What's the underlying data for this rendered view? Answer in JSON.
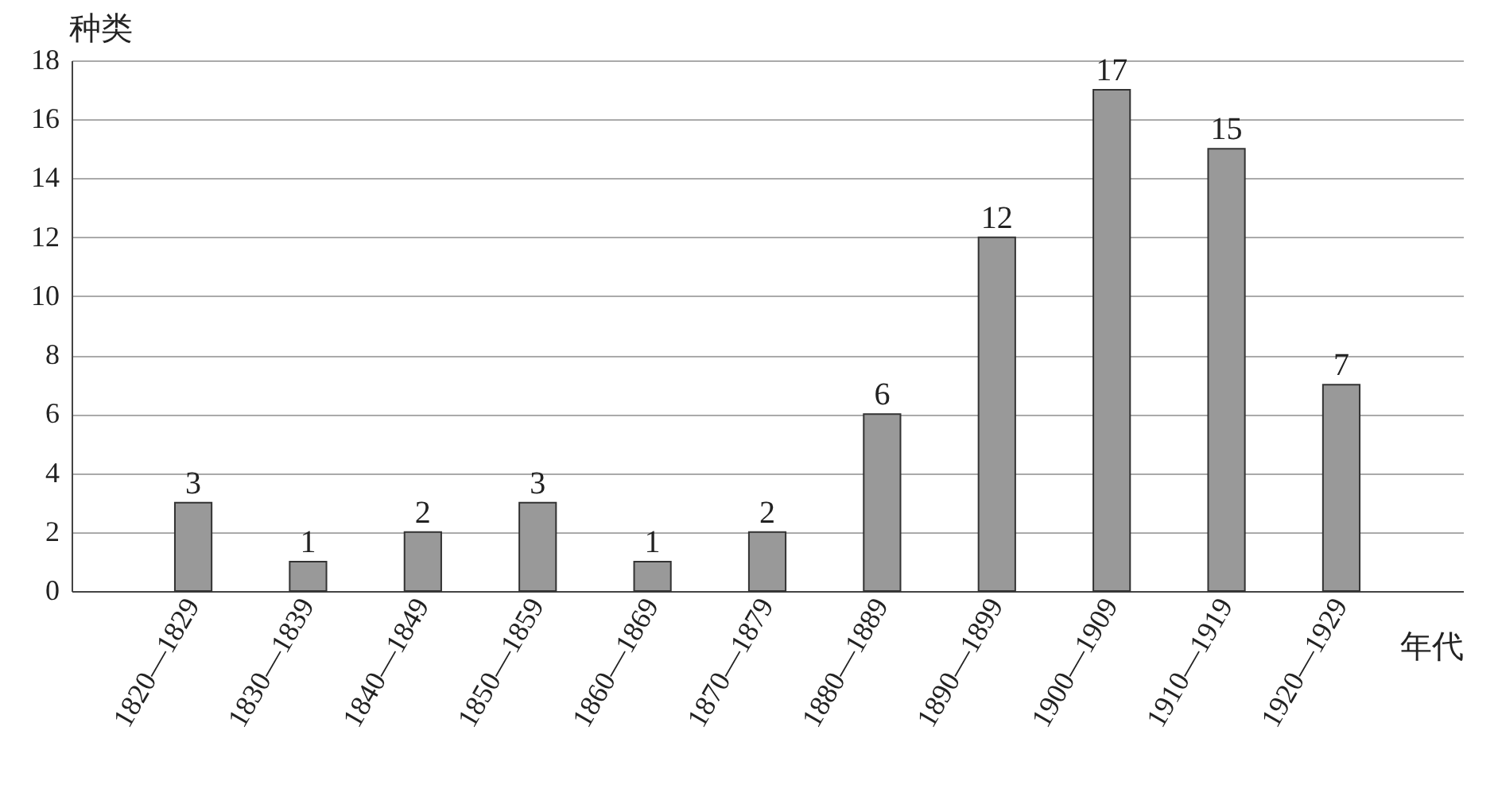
{
  "chart_data": {
    "type": "bar",
    "xlabel": "年代",
    "ylabel": "种类",
    "categories": [
      "1820—1829",
      "1830—1839",
      "1840—1849",
      "1850—1859",
      "1860—1869",
      "1870—1879",
      "1880—1889",
      "1890—1899",
      "1900—1909",
      "1910—1919",
      "1920—1929"
    ],
    "values": [
      3,
      1,
      2,
      3,
      1,
      2,
      6,
      12,
      17,
      15,
      7
    ],
    "color": "#999999",
    "ylim": [
      0,
      18
    ],
    "yticks": [
      0,
      2,
      4,
      6,
      8,
      10,
      12,
      14,
      16,
      18
    ],
    "grid": "y",
    "data_labels": true
  }
}
